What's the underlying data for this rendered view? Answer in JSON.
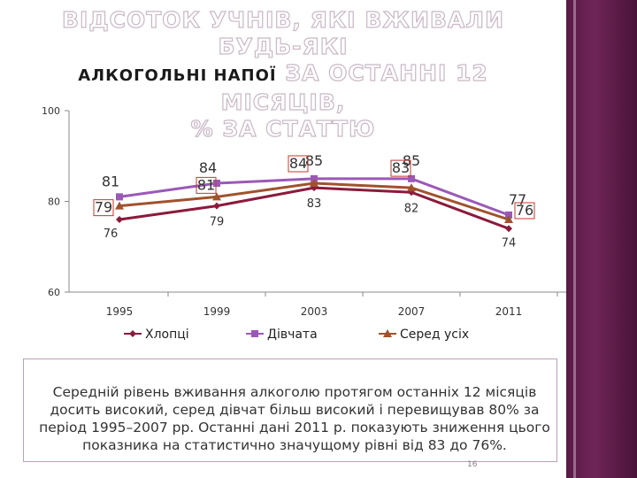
{
  "title": {
    "line1": "ВІДСОТОК УЧНІВ, ЯКІ ВЖИВАЛИ БУДЬ-ЯКІ",
    "line2a": "АЛКОГОЛЬНІ НАПОЇ",
    "line2b": "ЗА ОСТАННІ 12 МІСЯЦІВ,",
    "line3": "% ЗА СТАТТЮ"
  },
  "chart_data": {
    "type": "line",
    "x": [
      "1995",
      "1999",
      "2003",
      "2007",
      "2011"
    ],
    "ylim": [
      60,
      100
    ],
    "yticks": [
      60,
      80,
      100
    ],
    "grid": false,
    "legend": "bottom",
    "series": [
      {
        "name": "Хлопці",
        "values": [
          76,
          79,
          83,
          82,
          74
        ],
        "color": "#8b1a3c",
        "marker": "diamond"
      },
      {
        "name": "Дівчата",
        "values": [
          81,
          84,
          85,
          85,
          77
        ],
        "color": "#9b59b6",
        "marker": "square"
      },
      {
        "name": "Серед усіх",
        "values": [
          79,
          81,
          84,
          83,
          76
        ],
        "color": "#a0522d",
        "marker": "triangle"
      }
    ]
  },
  "note": {
    "text": "Середній рівень вживання алкоголю протягом останніх 12 місяців досить високий, серед дівчат більш високий і перевищував 80% за період 1995–2007 рр. Останні дані 2011 р. показують зниження цього показника на статистично значущому рівні від 83 до 76%."
  },
  "page_number": "16"
}
